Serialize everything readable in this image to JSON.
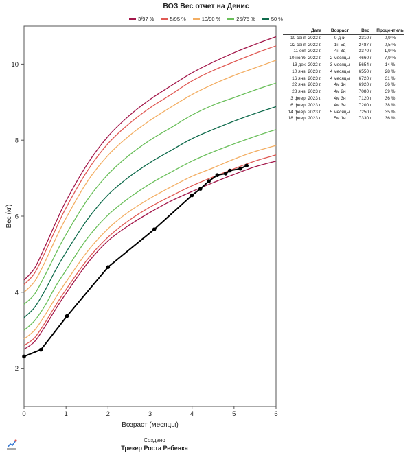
{
  "chart_data": {
    "type": "line",
    "title": "ВОЗ Вес отчет на Денис",
    "xlabel": "Возраст (месяцы)",
    "ylabel": "Вес (кг)",
    "xlim": [
      0,
      6
    ],
    "ylim": [
      1,
      11
    ],
    "xticks": [
      0,
      1,
      2,
      3,
      4,
      5,
      6
    ],
    "yticks": [
      2,
      4,
      6,
      8,
      10
    ],
    "grid": false,
    "legend_position": "top",
    "legend": [
      {
        "label": "3/97 %",
        "color": "#a3174a"
      },
      {
        "label": "5/95 %",
        "color": "#e05a54"
      },
      {
        "label": "10/90 %",
        "color": "#f3ae63"
      },
      {
        "label": "25/75 %",
        "color": "#6abf5a"
      },
      {
        "label": "50 %",
        "color": "#0f6b4c"
      }
    ],
    "x": [
      0,
      0.25,
      0.5,
      0.75,
      1,
      1.5,
      2,
      2.5,
      3,
      3.5,
      4,
      4.5,
      5,
      5.5,
      6
    ],
    "series": [
      {
        "name": "3/97 %",
        "color": "#a3174a",
        "values": [
          2.5,
          2.7,
          3.1,
          3.55,
          3.97,
          4.75,
          5.35,
          5.76,
          6.1,
          6.4,
          6.65,
          6.88,
          7.1,
          7.3,
          7.45
        ]
      },
      {
        "name": "5/95 %",
        "color": "#e05a54",
        "values": [
          2.6,
          2.8,
          3.2,
          3.65,
          4.07,
          4.85,
          5.45,
          5.89,
          6.24,
          6.53,
          6.8,
          7.03,
          7.25,
          7.45,
          7.61
        ]
      },
      {
        "name": "10/90 %",
        "color": "#f3ae63",
        "values": [
          2.77,
          3.0,
          3.4,
          3.85,
          4.27,
          5.06,
          5.67,
          6.12,
          6.47,
          6.77,
          7.05,
          7.27,
          7.5,
          7.7,
          7.86
        ]
      },
      {
        "name": "25/75 %",
        "color": "#6abf5a",
        "values": [
          3.0,
          3.25,
          3.65,
          4.15,
          4.58,
          5.41,
          6.03,
          6.48,
          6.85,
          7.16,
          7.45,
          7.69,
          7.9,
          8.1,
          8.28
        ]
      },
      {
        "name": "50 %",
        "color": "#0f6b4c",
        "values": [
          3.33,
          3.6,
          4.05,
          4.58,
          5.05,
          5.9,
          6.56,
          7.03,
          7.41,
          7.73,
          8.04,
          8.28,
          8.5,
          8.7,
          8.88
        ]
      },
      {
        "name": "25/75 %",
        "color": "#6abf5a",
        "values": [
          3.68,
          3.95,
          4.45,
          5.0,
          5.52,
          6.42,
          7.1,
          7.6,
          8.0,
          8.33,
          8.66,
          8.92,
          9.12,
          9.32,
          9.5
        ]
      },
      {
        "name": "10/90 %",
        "color": "#f3ae63",
        "values": [
          4.0,
          4.28,
          4.8,
          5.4,
          5.95,
          6.9,
          7.6,
          8.11,
          8.52,
          8.87,
          9.2,
          9.47,
          9.7,
          9.9,
          10.1
        ]
      },
      {
        "name": "5/95 %",
        "color": "#e05a54",
        "values": [
          4.2,
          4.5,
          5.05,
          5.65,
          6.22,
          7.18,
          7.91,
          8.43,
          8.85,
          9.2,
          9.56,
          9.83,
          10.06,
          10.28,
          10.48
        ]
      },
      {
        "name": "3/97 %",
        "color": "#a3174a",
        "values": [
          4.32,
          4.63,
          5.2,
          5.82,
          6.4,
          7.36,
          8.1,
          8.64,
          9.07,
          9.43,
          9.77,
          10.05,
          10.3,
          10.52,
          10.72
        ]
      }
    ],
    "child": {
      "color": "#000000",
      "points": [
        {
          "x": 0,
          "y": 2.31
        },
        {
          "x": 0.4,
          "y": 2.487
        },
        {
          "x": 1.02,
          "y": 3.37
        },
        {
          "x": 2.0,
          "y": 4.66
        },
        {
          "x": 3.1,
          "y": 5.654
        },
        {
          "x": 4.0,
          "y": 6.55
        },
        {
          "x": 4.2,
          "y": 6.72
        },
        {
          "x": 4.4,
          "y": 6.92
        },
        {
          "x": 4.6,
          "y": 7.08
        },
        {
          "x": 4.8,
          "y": 7.12
        },
        {
          "x": 4.9,
          "y": 7.2
        },
        {
          "x": 5.15,
          "y": 7.25
        },
        {
          "x": 5.3,
          "y": 7.33
        }
      ]
    }
  },
  "table": {
    "headers": {
      "date": "Дата",
      "age": "Возраст",
      "weight": "Вес",
      "percentile": "Процентиль"
    },
    "rows": [
      {
        "date": "10 сент. 2022 г.",
        "age": "0 дни",
        "weight": "2310 г",
        "percentile": "0,9 %"
      },
      {
        "date": "22 сент. 2022 г.",
        "age": "1н 5д",
        "weight": "2487 г",
        "percentile": "0,5 %"
      },
      {
        "date": "11 окт. 2022 г.",
        "age": "4н 3д",
        "weight": "3370 г",
        "percentile": "1,9 %"
      },
      {
        "date": "10 нояб. 2022 г.",
        "age": "2 месяцы",
        "weight": "4660 г",
        "percentile": "7,9 %"
      },
      {
        "date": "13 дек. 2022 г.",
        "age": "3 месяцы",
        "weight": "5654 г",
        "percentile": "14 %"
      },
      {
        "date": "10 янв. 2023 г.",
        "age": "4 месяцы",
        "weight": "6550 г",
        "percentile": "28 %"
      },
      {
        "date": "16 янв. 2023 г.",
        "age": "4 месяцы",
        "weight": "6720 г",
        "percentile": "31 %"
      },
      {
        "date": "22 янв. 2023 г.",
        "age": "4м 1н",
        "weight": "6920 г",
        "percentile": "36 %"
      },
      {
        "date": "28 янв. 2023 г.",
        "age": "4м 2н",
        "weight": "7080 г",
        "percentile": "39 %"
      },
      {
        "date": "3 февр. 2023 г.",
        "age": "4м 3н",
        "weight": "7120 г",
        "percentile": "36 %"
      },
      {
        "date": "6 февр. 2023 г.",
        "age": "4м 3н",
        "weight": "7200 г",
        "percentile": "38 %"
      },
      {
        "date": "14 февр. 2023 г.",
        "age": "5 месяцы",
        "weight": "7250 г",
        "percentile": "35 %"
      },
      {
        "date": "18 февр. 2023 г.",
        "age": "5м 1н",
        "weight": "7330 г",
        "percentile": "36 %"
      }
    ]
  },
  "footer": {
    "created": "Создано",
    "app_name": "Трекер Роста Ребенка",
    "logo_icon": "growth-tracker-logo-icon"
  }
}
